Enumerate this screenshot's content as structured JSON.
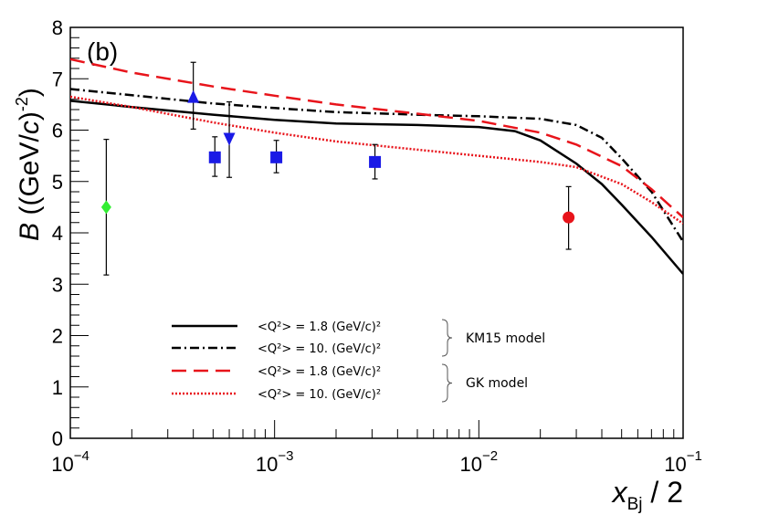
{
  "chart_data": {
    "type": "line",
    "panel_label": "(b)",
    "ylabel": "B ((GeV/c)-2)",
    "xlabel": "xBj / 2",
    "x_scale": "log",
    "xlim": [
      0.0001,
      0.1
    ],
    "ylim": [
      0,
      8
    ],
    "grid": false,
    "legend_position": "bottom-center",
    "x_ticks": [
      {
        "value": 0.0001,
        "base": "10",
        "exp": "-4"
      },
      {
        "value": 0.001,
        "base": "10",
        "exp": "-3"
      },
      {
        "value": 0.01,
        "base": "10",
        "exp": "-2"
      },
      {
        "value": 0.1,
        "base": "10",
        "exp": "-1"
      }
    ],
    "y_ticks": [
      0,
      1,
      2,
      3,
      4,
      5,
      6,
      7,
      8
    ],
    "series": [
      {
        "name": "<Q²> = 1.8 (GeV/c)²",
        "group": "KM15 model",
        "color": "#000000",
        "dash": "solid",
        "x": [
          0.0001,
          0.0002,
          0.0005,
          0.001,
          0.002,
          0.005,
          0.01,
          0.015,
          0.02,
          0.03,
          0.04,
          0.05,
          0.07,
          0.1
        ],
        "y": [
          6.57,
          6.45,
          6.3,
          6.2,
          6.13,
          6.1,
          6.06,
          5.98,
          5.8,
          5.35,
          4.95,
          4.55,
          3.92,
          3.2
        ]
      },
      {
        "name": "<Q²> = 10. (GeV/c)²",
        "group": "KM15 model",
        "color": "#000000",
        "dash": "dashdot",
        "x": [
          0.0001,
          0.0002,
          0.0005,
          0.001,
          0.002,
          0.005,
          0.01,
          0.02,
          0.03,
          0.04,
          0.05,
          0.07,
          0.1
        ],
        "y": [
          6.8,
          6.68,
          6.52,
          6.43,
          6.35,
          6.3,
          6.27,
          6.22,
          6.1,
          5.85,
          5.45,
          4.8,
          3.83
        ]
      },
      {
        "name": "<Q²> = 1.8 (GeV/c)²",
        "group": "GK model",
        "color": "#e8141b",
        "dash": "dashed",
        "x": [
          0.0001,
          0.0002,
          0.0005,
          0.001,
          0.002,
          0.005,
          0.01,
          0.02,
          0.03,
          0.05,
          0.07,
          0.1
        ],
        "y": [
          7.38,
          7.12,
          6.85,
          6.67,
          6.5,
          6.32,
          6.18,
          5.95,
          5.72,
          5.3,
          4.85,
          4.3
        ]
      },
      {
        "name": "<Q²> = 10. (GeV/c)²",
        "group": "GK model",
        "color": "#e8141b",
        "dash": "dotted",
        "x": [
          0.0001,
          0.0002,
          0.0005,
          0.001,
          0.002,
          0.005,
          0.01,
          0.02,
          0.03,
          0.05,
          0.07,
          0.1
        ],
        "y": [
          6.65,
          6.45,
          6.15,
          5.95,
          5.78,
          5.62,
          5.5,
          5.38,
          5.28,
          4.95,
          4.6,
          4.18
        ]
      }
    ],
    "points": [
      {
        "x": 0.00015,
        "y": 4.5,
        "err_lo": 3.18,
        "err_hi": 5.82,
        "marker": "diamond",
        "color": "#33ee33"
      },
      {
        "x": 0.0004,
        "y": 6.63,
        "err_lo": 6.02,
        "err_hi": 7.32,
        "marker": "triangle-up",
        "color": "#1a1ae6"
      },
      {
        "x": 0.00051,
        "y": 5.47,
        "err_lo": 5.1,
        "err_hi": 5.87,
        "marker": "square",
        "color": "#1a1ae6"
      },
      {
        "x": 0.0006,
        "y": 5.85,
        "err_lo": 5.08,
        "err_hi": 6.55,
        "marker": "triangle-down",
        "color": "#1a1ae6"
      },
      {
        "x": 0.00102,
        "y": 5.47,
        "err_lo": 5.17,
        "err_hi": 5.8,
        "marker": "square",
        "color": "#1a1ae6"
      },
      {
        "x": 0.0031,
        "y": 5.38,
        "err_lo": 5.05,
        "err_hi": 5.72,
        "marker": "square",
        "color": "#1a1ae6"
      },
      {
        "x": 0.0275,
        "y": 4.3,
        "err_lo": 3.68,
        "err_hi": 4.9,
        "marker": "circle",
        "color": "#e8141b"
      }
    ],
    "legend_groups": [
      "KM15 model",
      "GK model"
    ]
  }
}
